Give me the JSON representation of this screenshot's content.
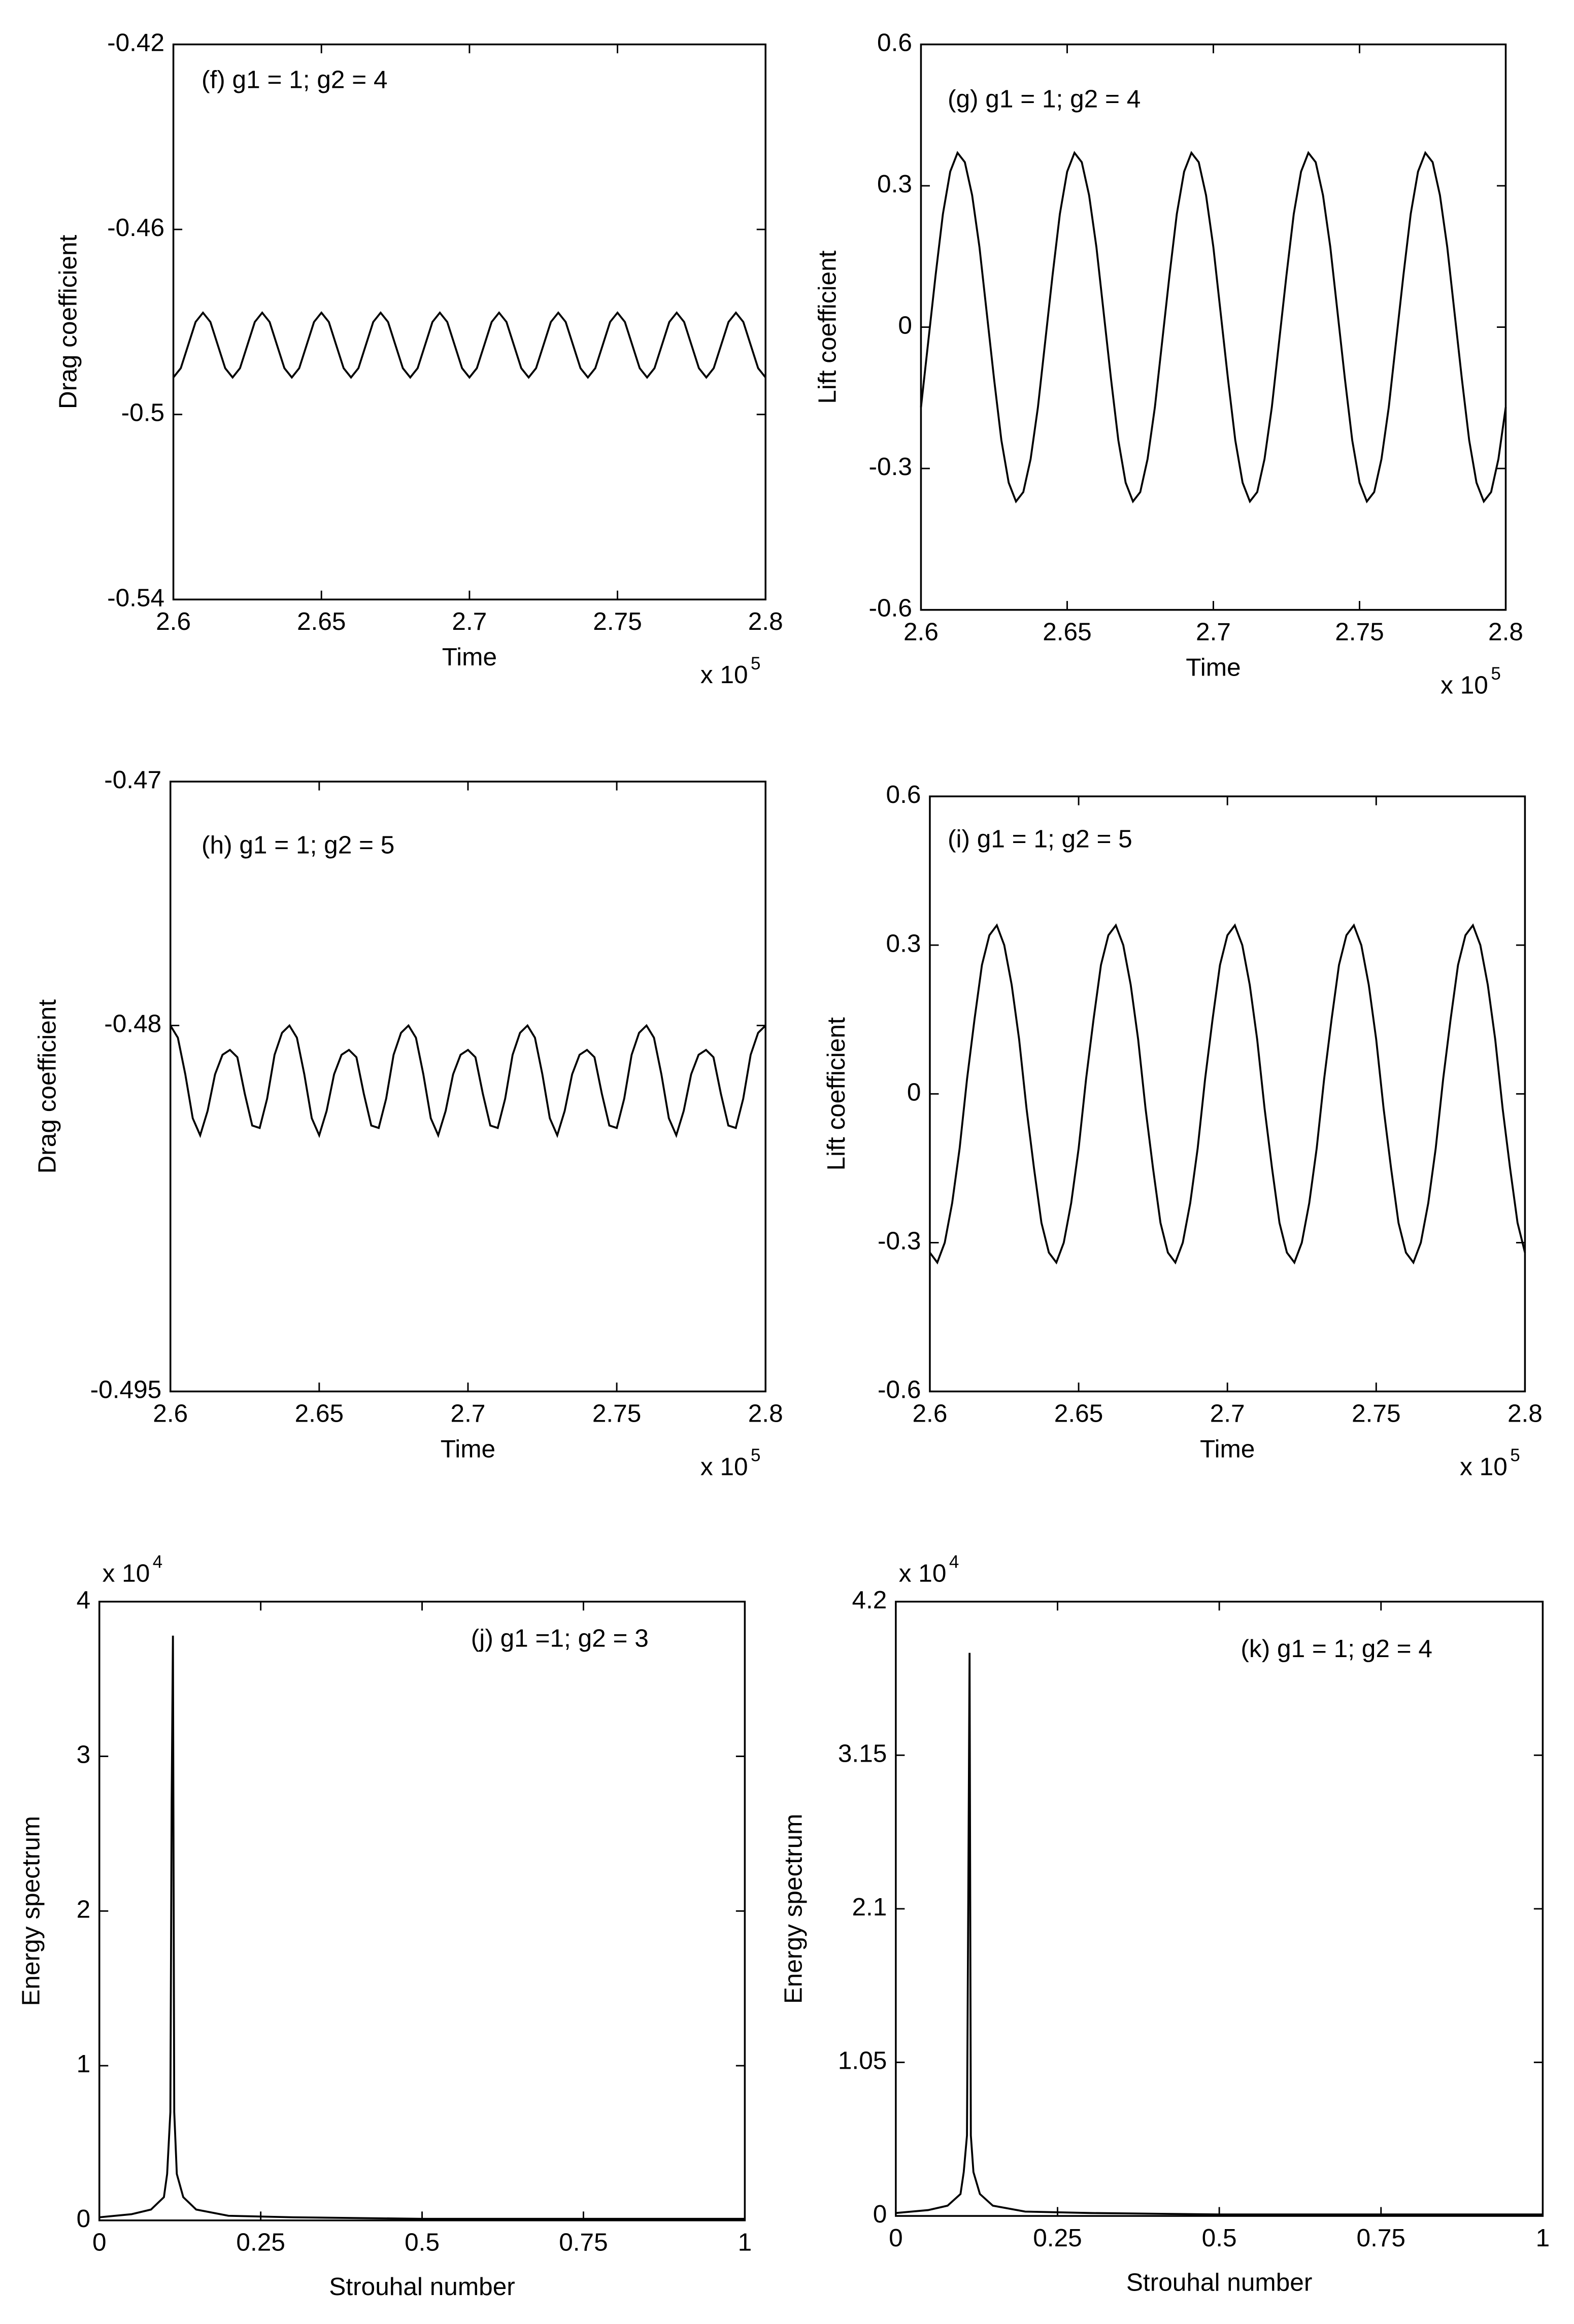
{
  "chart_data": [
    {
      "type": "line",
      "annotation": "(f) g1 = 1; g2 = 4",
      "xlabel": "Time",
      "ylabel": "Drag coefficient",
      "x_multiplier": "x 10",
      "x_multiplier_exponent": "5",
      "color": "#000000",
      "xlim": [
        2.6,
        2.8
      ],
      "xticks": [
        2.6,
        2.65,
        2.7,
        2.75,
        2.8
      ],
      "ylim": [
        -0.54,
        -0.42
      ],
      "yticks": [
        -0.54,
        -0.5,
        -0.46,
        -0.42
      ],
      "x": [
        2.6,
        2.6025,
        2.605,
        2.6075,
        2.61,
        2.6125,
        2.615,
        2.6175,
        2.62,
        2.6225,
        2.625,
        2.6275,
        2.63,
        2.6325,
        2.635,
        2.6375,
        2.64,
        2.6425,
        2.645,
        2.6475,
        2.65,
        2.6525,
        2.655,
        2.6575,
        2.66,
        2.6625,
        2.665,
        2.6675,
        2.67,
        2.6725,
        2.675,
        2.6775,
        2.68,
        2.6825,
        2.685,
        2.6875,
        2.69,
        2.6925,
        2.695,
        2.6975,
        2.7,
        2.7025,
        2.705,
        2.7075,
        2.71,
        2.7125,
        2.715,
        2.7175,
        2.72,
        2.7225,
        2.725,
        2.7275,
        2.73,
        2.7325,
        2.735,
        2.7375,
        2.74,
        2.7425,
        2.745,
        2.7475,
        2.75,
        2.7525,
        2.755,
        2.7575,
        2.76,
        2.7625,
        2.765,
        2.7675,
        2.77,
        2.7725,
        2.775,
        2.7775,
        2.78,
        2.7825,
        2.785,
        2.7875,
        2.79,
        2.7925,
        2.795,
        2.7975,
        2.8
      ],
      "values": [
        -0.492,
        -0.49,
        -0.485,
        -0.48,
        -0.478,
        -0.48,
        -0.485,
        -0.49,
        -0.492,
        -0.49,
        -0.485,
        -0.48,
        -0.478,
        -0.48,
        -0.485,
        -0.49,
        -0.492,
        -0.49,
        -0.485,
        -0.48,
        -0.478,
        -0.48,
        -0.485,
        -0.49,
        -0.492,
        -0.49,
        -0.485,
        -0.48,
        -0.478,
        -0.48,
        -0.485,
        -0.49,
        -0.492,
        -0.49,
        -0.485,
        -0.48,
        -0.478,
        -0.48,
        -0.485,
        -0.49,
        -0.492,
        -0.49,
        -0.485,
        -0.48,
        -0.478,
        -0.48,
        -0.485,
        -0.49,
        -0.492,
        -0.49,
        -0.485,
        -0.48,
        -0.478,
        -0.48,
        -0.485,
        -0.49,
        -0.492,
        -0.49,
        -0.485,
        -0.48,
        -0.478,
        -0.48,
        -0.485,
        -0.49,
        -0.492,
        -0.49,
        -0.485,
        -0.48,
        -0.478,
        -0.48,
        -0.485,
        -0.49,
        -0.492,
        -0.49,
        -0.485,
        -0.48,
        -0.478,
        -0.48,
        -0.485,
        -0.49,
        -0.492
      ]
    },
    {
      "type": "line",
      "annotation": "(g) g1 = 1; g2 = 4",
      "xlabel": "Time",
      "ylabel": "Lift coefficient",
      "x_multiplier": "x 10",
      "x_multiplier_exponent": "5",
      "color": "#000000",
      "xlim": [
        2.6,
        2.8
      ],
      "xticks": [
        2.6,
        2.65,
        2.7,
        2.75,
        2.8
      ],
      "ylim": [
        -0.6,
        0.6
      ],
      "yticks": [
        -0.6,
        -0.3,
        0,
        0.3,
        0.6
      ],
      "x": [
        2.6,
        2.6025,
        2.605,
        2.6075,
        2.61,
        2.6125,
        2.615,
        2.6175,
        2.62,
        2.6225,
        2.625,
        2.6275,
        2.63,
        2.6325,
        2.635,
        2.6375,
        2.64,
        2.6425,
        2.645,
        2.6475,
        2.65,
        2.6525,
        2.655,
        2.6575,
        2.66,
        2.6625,
        2.665,
        2.6675,
        2.67,
        2.6725,
        2.675,
        2.6775,
        2.68,
        2.6825,
        2.685,
        2.6875,
        2.69,
        2.6925,
        2.695,
        2.6975,
        2.7,
        2.7025,
        2.705,
        2.7075,
        2.71,
        2.7125,
        2.715,
        2.7175,
        2.72,
        2.7225,
        2.725,
        2.7275,
        2.73,
        2.7325,
        2.735,
        2.7375,
        2.74,
        2.7425,
        2.745,
        2.7475,
        2.75,
        2.7525,
        2.755,
        2.7575,
        2.76,
        2.7625,
        2.765,
        2.7675,
        2.77,
        2.7725,
        2.775,
        2.7775,
        2.78,
        2.7825,
        2.785,
        2.7875,
        2.79,
        2.7925,
        2.795,
        2.7975,
        2.8
      ],
      "values": [
        -0.17,
        -0.03,
        0.11,
        0.24,
        0.33,
        0.37,
        0.35,
        0.28,
        0.17,
        0.03,
        -0.11,
        -0.24,
        -0.33,
        -0.37,
        -0.35,
        -0.28,
        -0.17,
        -0.03,
        0.11,
        0.24,
        0.33,
        0.37,
        0.35,
        0.28,
        0.17,
        0.03,
        -0.11,
        -0.24,
        -0.33,
        -0.37,
        -0.35,
        -0.28,
        -0.17,
        -0.03,
        0.11,
        0.24,
        0.33,
        0.37,
        0.35,
        0.28,
        0.17,
        0.03,
        -0.11,
        -0.24,
        -0.33,
        -0.37,
        -0.35,
        -0.28,
        -0.17,
        -0.03,
        0.11,
        0.24,
        0.33,
        0.37,
        0.35,
        0.28,
        0.17,
        0.03,
        -0.11,
        -0.24,
        -0.33,
        -0.37,
        -0.35,
        -0.28,
        -0.17,
        -0.03,
        0.11,
        0.24,
        0.33,
        0.37,
        0.35,
        0.28,
        0.17,
        0.03,
        -0.11,
        -0.24,
        -0.33,
        -0.37,
        -0.35,
        -0.28,
        -0.17
      ]
    },
    {
      "type": "line",
      "annotation": "(h) g1 = 1; g2 = 5",
      "xlabel": "Time",
      "ylabel": "Drag coefficient",
      "x_multiplier": "x 10",
      "x_multiplier_exponent": "5",
      "color": "#000000",
      "xlim": [
        2.6,
        2.8
      ],
      "xticks": [
        2.6,
        2.65,
        2.7,
        2.75,
        2.8
      ],
      "ylim": [
        -0.495,
        -0.47
      ],
      "yticks": [
        -0.495,
        -0.48,
        -0.47
      ],
      "x": [
        2.6,
        2.6025,
        2.605,
        2.6075,
        2.61,
        2.6125,
        2.615,
        2.6175,
        2.62,
        2.6225,
        2.625,
        2.6275,
        2.63,
        2.6325,
        2.635,
        2.6375,
        2.64,
        2.6425,
        2.645,
        2.6475,
        2.65,
        2.6525,
        2.655,
        2.6575,
        2.66,
        2.6625,
        2.665,
        2.6675,
        2.67,
        2.6725,
        2.675,
        2.6775,
        2.68,
        2.6825,
        2.685,
        2.6875,
        2.69,
        2.6925,
        2.695,
        2.6975,
        2.7,
        2.7025,
        2.705,
        2.7075,
        2.71,
        2.7125,
        2.715,
        2.7175,
        2.72,
        2.7225,
        2.725,
        2.7275,
        2.73,
        2.7325,
        2.735,
        2.7375,
        2.74,
        2.7425,
        2.745,
        2.7475,
        2.75,
        2.7525,
        2.755,
        2.7575,
        2.76,
        2.7625,
        2.765,
        2.7675,
        2.77,
        2.7725,
        2.775,
        2.7775,
        2.78,
        2.7825,
        2.785,
        2.7875,
        2.79,
        2.7925,
        2.795,
        2.7975,
        2.8
      ],
      "values": [
        -0.48,
        -0.4805,
        -0.482,
        -0.4838,
        -0.4845,
        -0.4835,
        -0.482,
        -0.4812,
        -0.481,
        -0.4813,
        -0.4828,
        -0.4841,
        -0.4842,
        -0.483,
        -0.4812,
        -0.4803,
        -0.48,
        -0.4805,
        -0.482,
        -0.4838,
        -0.4845,
        -0.4835,
        -0.482,
        -0.4812,
        -0.481,
        -0.4813,
        -0.4828,
        -0.4841,
        -0.4842,
        -0.483,
        -0.4812,
        -0.4803,
        -0.48,
        -0.4805,
        -0.482,
        -0.4838,
        -0.4845,
        -0.4835,
        -0.482,
        -0.4812,
        -0.481,
        -0.4813,
        -0.4828,
        -0.4841,
        -0.4842,
        -0.483,
        -0.4812,
        -0.4803,
        -0.48,
        -0.4805,
        -0.482,
        -0.4838,
        -0.4845,
        -0.4835,
        -0.482,
        -0.4812,
        -0.481,
        -0.4813,
        -0.4828,
        -0.4841,
        -0.4842,
        -0.483,
        -0.4812,
        -0.4803,
        -0.48,
        -0.4805,
        -0.482,
        -0.4838,
        -0.4845,
        -0.4835,
        -0.482,
        -0.4812,
        -0.481,
        -0.4813,
        -0.4828,
        -0.4841,
        -0.4842,
        -0.483,
        -0.4812,
        -0.4803,
        -0.48
      ]
    },
    {
      "type": "line",
      "annotation": "(i) g1 = 1; g2 = 5",
      "xlabel": "Time",
      "ylabel": "Lift coefficient",
      "x_multiplier": "x 10",
      "x_multiplier_exponent": "5",
      "color": "#000000",
      "xlim": [
        2.6,
        2.8
      ],
      "xticks": [
        2.6,
        2.65,
        2.7,
        2.75,
        2.8
      ],
      "ylim": [
        -0.6,
        0.6
      ],
      "yticks": [
        -0.6,
        -0.3,
        0,
        0.3,
        0.6
      ],
      "x": [
        2.6,
        2.6025,
        2.605,
        2.6075,
        2.61,
        2.6125,
        2.615,
        2.6175,
        2.62,
        2.6225,
        2.625,
        2.6275,
        2.63,
        2.6325,
        2.635,
        2.6375,
        2.64,
        2.6425,
        2.645,
        2.6475,
        2.65,
        2.6525,
        2.655,
        2.6575,
        2.66,
        2.6625,
        2.665,
        2.6675,
        2.67,
        2.6725,
        2.675,
        2.6775,
        2.68,
        2.6825,
        2.685,
        2.6875,
        2.69,
        2.6925,
        2.695,
        2.6975,
        2.7,
        2.7025,
        2.705,
        2.7075,
        2.71,
        2.7125,
        2.715,
        2.7175,
        2.72,
        2.7225,
        2.725,
        2.7275,
        2.73,
        2.7325,
        2.735,
        2.7375,
        2.74,
        2.7425,
        2.745,
        2.7475,
        2.75,
        2.7525,
        2.755,
        2.7575,
        2.76,
        2.7625,
        2.765,
        2.7675,
        2.77,
        2.7725,
        2.775,
        2.7775,
        2.78,
        2.7825,
        2.785,
        2.7875,
        2.79,
        2.7925,
        2.795,
        2.7975,
        2.8
      ],
      "values": [
        -0.32,
        -0.34,
        -0.3,
        -0.22,
        -0.11,
        0.03,
        0.15,
        0.26,
        0.32,
        0.34,
        0.3,
        0.22,
        0.11,
        -0.03,
        -0.15,
        -0.26,
        -0.32,
        -0.34,
        -0.3,
        -0.22,
        -0.11,
        0.03,
        0.15,
        0.26,
        0.32,
        0.34,
        0.3,
        0.22,
        0.11,
        -0.03,
        -0.15,
        -0.26,
        -0.32,
        -0.34,
        -0.3,
        -0.22,
        -0.11,
        0.03,
        0.15,
        0.26,
        0.32,
        0.34,
        0.3,
        0.22,
        0.11,
        -0.03,
        -0.15,
        -0.26,
        -0.32,
        -0.34,
        -0.3,
        -0.22,
        -0.11,
        0.03,
        0.15,
        0.26,
        0.32,
        0.34,
        0.3,
        0.22,
        0.11,
        -0.03,
        -0.15,
        -0.26,
        -0.32,
        -0.34,
        -0.3,
        -0.22,
        -0.11,
        0.03,
        0.15,
        0.26,
        0.32,
        0.34,
        0.3,
        0.22,
        0.11,
        -0.03,
        -0.15,
        -0.26,
        -0.32
      ]
    },
    {
      "type": "line",
      "annotation": "(j) g1 =1; g2 = 3",
      "xlabel": "Strouhal number",
      "ylabel": "Energy spectrum",
      "y_multiplier": "x 10",
      "y_multiplier_exponent": "4",
      "color": "#000000",
      "xlim": [
        0,
        1
      ],
      "xticks": [
        0,
        0.25,
        0.5,
        0.75,
        1
      ],
      "ylim": [
        0,
        4
      ],
      "yticks": [
        0,
        1,
        2,
        3,
        4
      ],
      "x": [
        0,
        0.05,
        0.08,
        0.1,
        0.105,
        0.11,
        0.112,
        0.114,
        0.116,
        0.12,
        0.13,
        0.15,
        0.2,
        0.3,
        0.5,
        1
      ],
      "values": [
        0.02,
        0.04,
        0.07,
        0.15,
        0.3,
        0.7,
        2.7,
        3.78,
        0.7,
        0.3,
        0.15,
        0.07,
        0.03,
        0.02,
        0.01,
        0.01
      ]
    },
    {
      "type": "line",
      "annotation": "(k) g1 = 1; g2 = 4",
      "xlabel": "Strouhal number",
      "ylabel": "Energy spectrum",
      "y_multiplier": "x 10",
      "y_multiplier_exponent": "4",
      "color": "#000000",
      "xlim": [
        0,
        1
      ],
      "xticks": [
        0,
        0.25,
        0.5,
        0.75,
        1
      ],
      "ylim": [
        0,
        4.2
      ],
      "yticks": [
        0,
        1.05,
        2.1,
        3.15,
        4.2
      ],
      "x": [
        0,
        0.05,
        0.08,
        0.1,
        0.105,
        0.11,
        0.112,
        0.114,
        0.116,
        0.12,
        0.13,
        0.15,
        0.2,
        0.3,
        0.5,
        1
      ],
      "values": [
        0.02,
        0.04,
        0.07,
        0.15,
        0.3,
        0.55,
        2.15,
        3.85,
        0.55,
        0.3,
        0.15,
        0.07,
        0.03,
        0.02,
        0.01,
        0.01
      ]
    }
  ]
}
